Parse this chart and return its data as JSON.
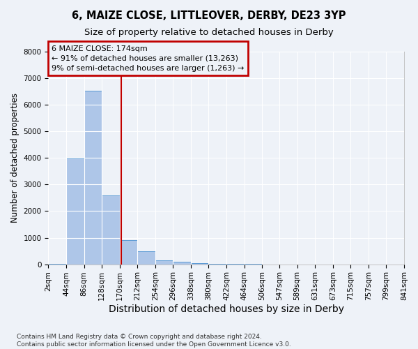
{
  "title1": "6, MAIZE CLOSE, LITTLEOVER, DERBY, DE23 3YP",
  "title2": "Size of property relative to detached houses in Derby",
  "xlabel": "Distribution of detached houses by size in Derby",
  "ylabel": "Number of detached properties",
  "bin_edges": [
    2,
    44,
    86,
    128,
    170,
    212,
    254,
    296,
    338,
    380,
    422,
    464,
    506,
    547,
    589,
    631,
    673,
    715,
    757,
    799,
    841
  ],
  "bar_heights": [
    25,
    3990,
    6530,
    2600,
    900,
    490,
    150,
    100,
    50,
    10,
    5,
    5,
    2,
    2,
    1,
    1,
    0,
    0,
    0,
    0
  ],
  "bar_color": "#aec6e8",
  "bar_edge_color": "#5b9bd5",
  "vline_x": 174,
  "vline_color": "#c00000",
  "annotation_line1": "6 MAIZE CLOSE: 174sqm",
  "annotation_line2": "← 91% of detached houses are smaller (13,263)",
  "annotation_line3": "9% of semi-detached houses are larger (1,263) →",
  "annotation_box_color": "#c00000",
  "ylim": [
    0,
    8000
  ],
  "yticks": [
    0,
    1000,
    2000,
    3000,
    4000,
    5000,
    6000,
    7000,
    8000
  ],
  "footnote": "Contains HM Land Registry data © Crown copyright and database right 2024.\nContains public sector information licensed under the Open Government Licence v3.0.",
  "background_color": "#eef2f8",
  "grid_color": "#ffffff",
  "title1_fontsize": 10.5,
  "title2_fontsize": 9.5,
  "xlabel_fontsize": 10,
  "ylabel_fontsize": 8.5,
  "tick_fontsize": 7.5,
  "footnote_fontsize": 6.5,
  "annotation_fontsize": 8
}
